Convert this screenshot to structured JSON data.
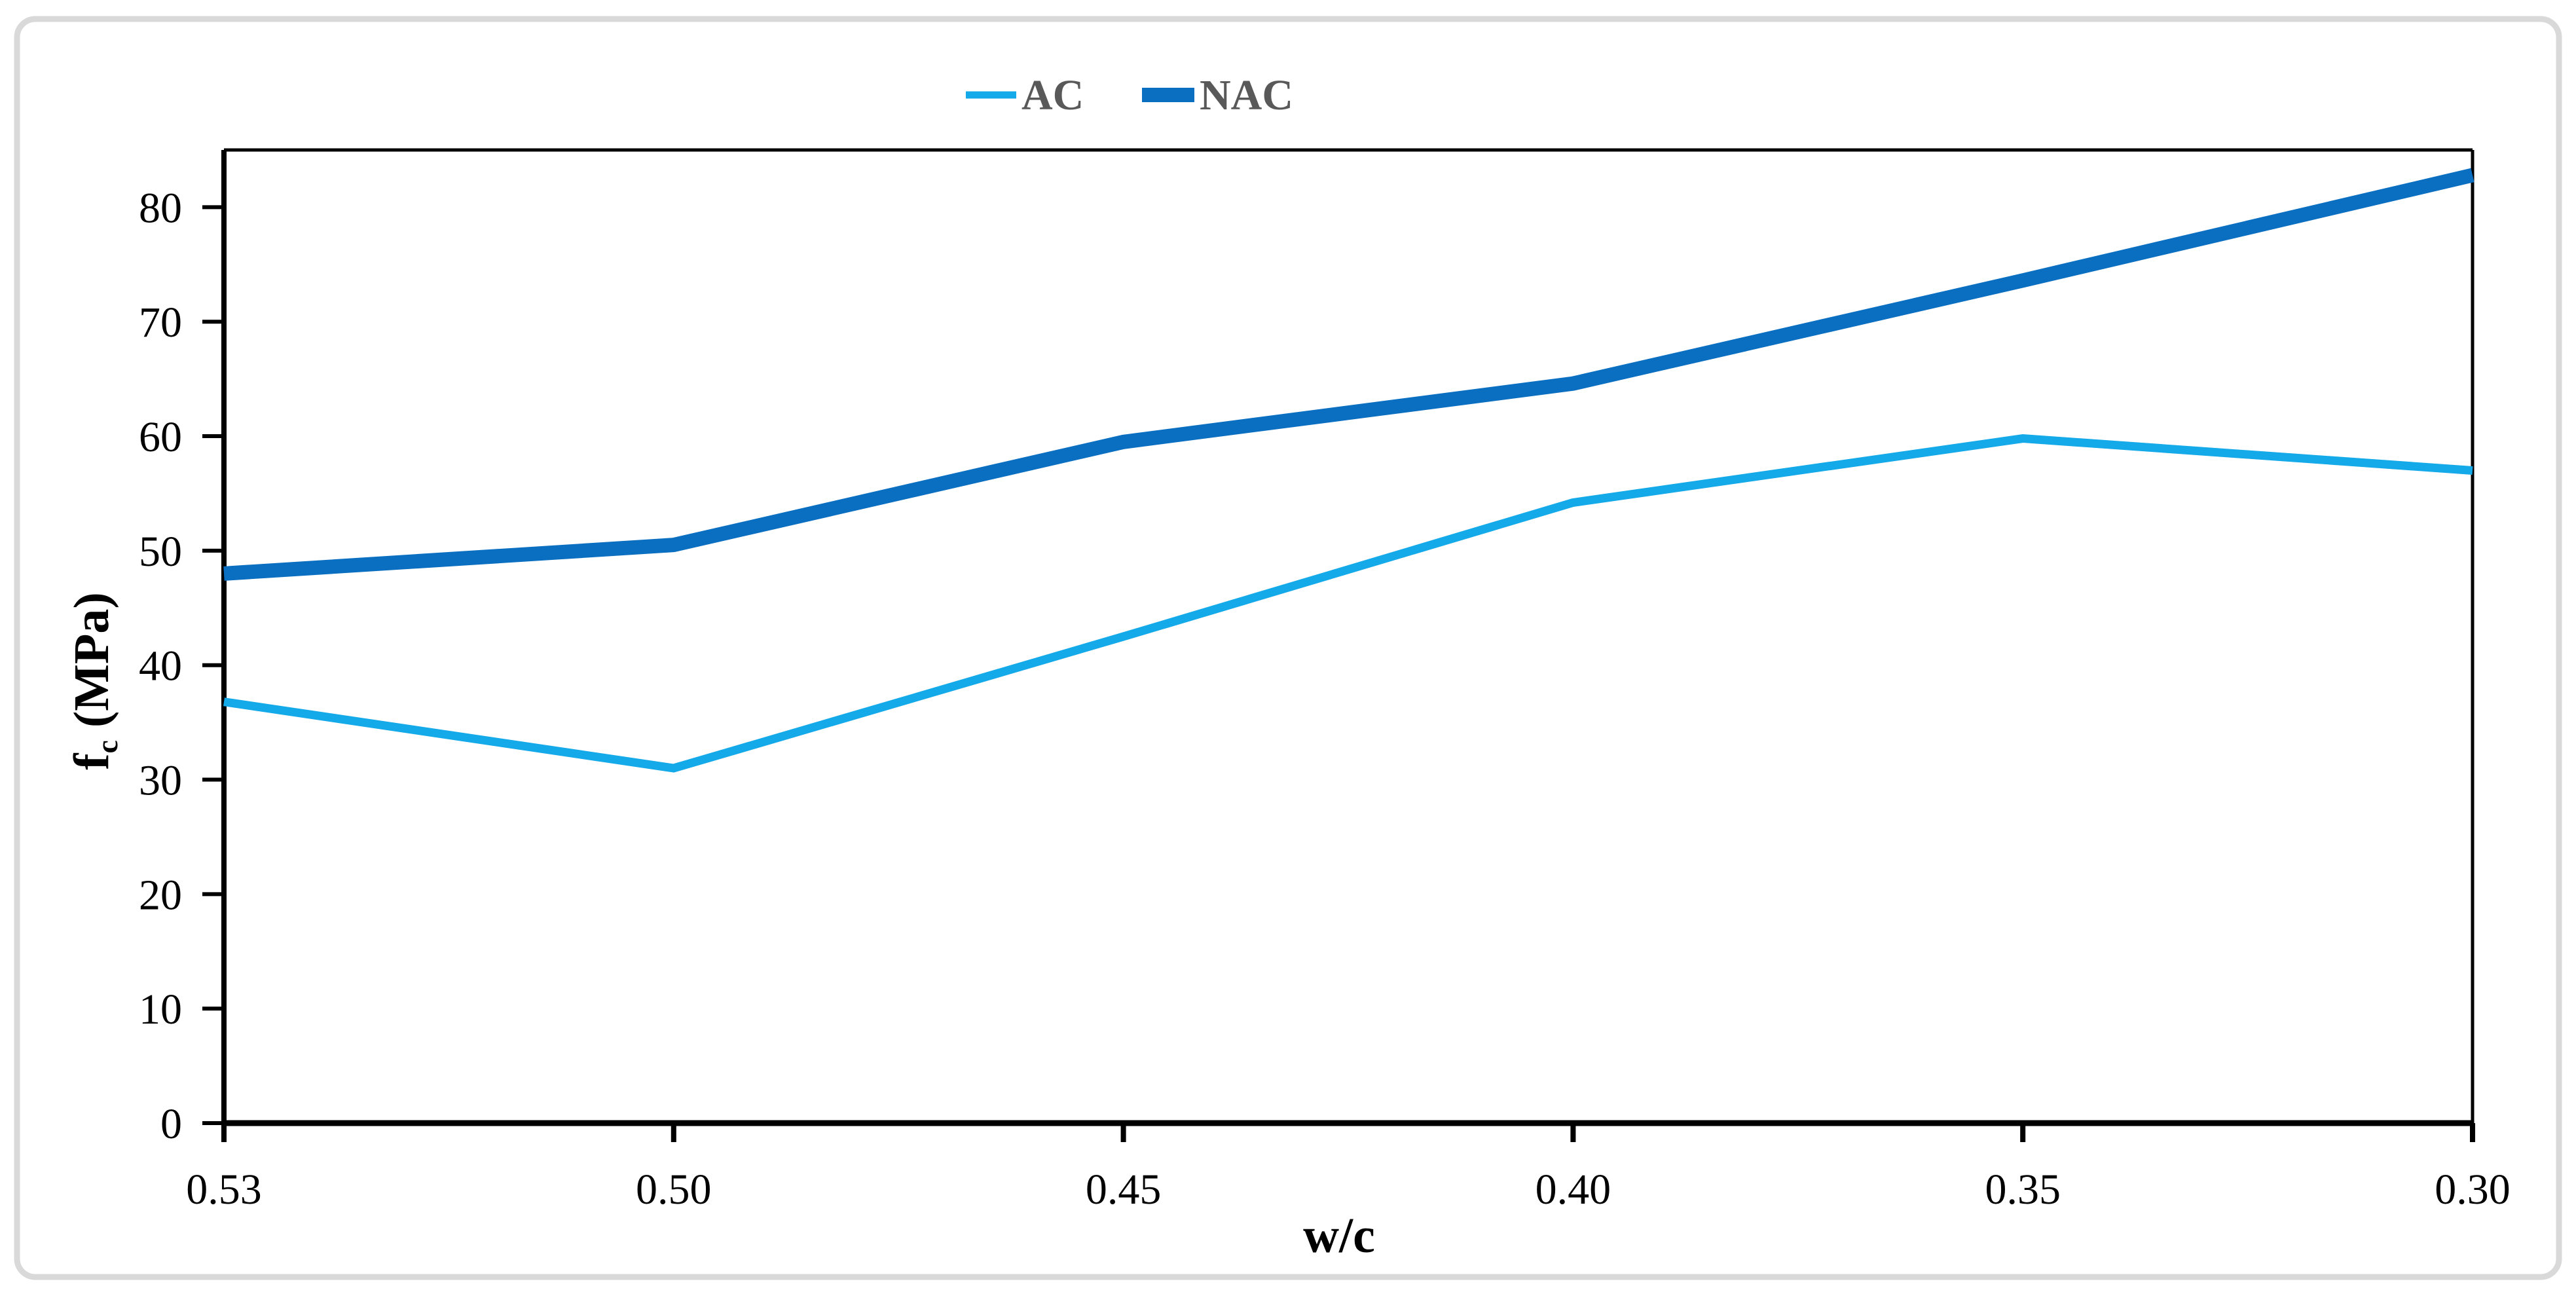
{
  "chart_data": {
    "type": "line",
    "title": "",
    "xlabel": "w/c",
    "ylabel": "fc (MPa)",
    "ylabel_parts": {
      "main": "f",
      "sub": "c",
      "rest": " (MPa)"
    },
    "categories": [
      "0.53",
      "0.50",
      "0.45",
      "0.40",
      "0.35",
      "0.30"
    ],
    "series": [
      {
        "name": "AC",
        "color": "#14a9e8",
        "stroke_width": 13,
        "values": [
          36.8,
          31.0,
          42.5,
          54.2,
          59.8,
          57.0
        ]
      },
      {
        "name": "NAC",
        "color": "#0b6fc1",
        "stroke_width": 22,
        "values": [
          48.0,
          50.5,
          59.5,
          64.6,
          73.6,
          82.8
        ]
      }
    ],
    "y_ticks": [
      0,
      10,
      20,
      30,
      40,
      50,
      60,
      70,
      80
    ],
    "ylim": [
      0,
      85
    ],
    "grid": false,
    "legend_position": "top",
    "axis_color": "#000000",
    "tick_label_color": "#000000",
    "legend_text_color": "#595959",
    "figure_border_color": "#d9d9d9"
  }
}
